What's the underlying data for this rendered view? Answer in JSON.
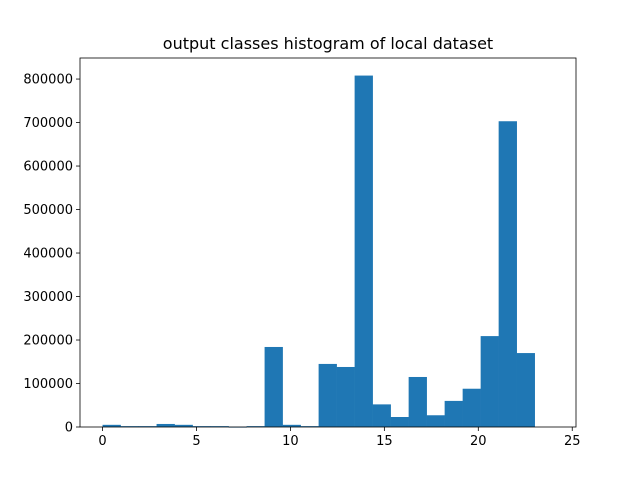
{
  "chart_data": {
    "type": "bar",
    "title": "output classes histogram of local dataset",
    "xlabel": "",
    "ylabel": "",
    "bar_color": "#1f77b4",
    "bin_edges": [
      0,
      0.958,
      1.917,
      2.875,
      3.833,
      4.792,
      5.75,
      6.708,
      7.667,
      8.625,
      9.583,
      10.542,
      11.5,
      12.458,
      13.417,
      14.375,
      15.333,
      16.292,
      17.25,
      18.208,
      19.167,
      20.125,
      21.083,
      22.042,
      23.0,
      23.958
    ],
    "values": [
      5000,
      2000,
      2000,
      7000,
      5000,
      2000,
      2000,
      500,
      2000,
      184000,
      5000,
      2000,
      145000,
      138000,
      808000,
      52000,
      23000,
      115000,
      27000,
      60000,
      88000,
      209000,
      703000,
      170000,
      0
    ],
    "xlim": [
      -1.2,
      25.2
    ],
    "ylim": [
      0,
      848400
    ],
    "xticks": [
      0,
      5,
      10,
      15,
      20,
      25
    ],
    "xtick_labels": [
      "0",
      "5",
      "10",
      "15",
      "20",
      "25"
    ],
    "yticks": [
      0,
      100000,
      200000,
      300000,
      400000,
      500000,
      600000,
      700000,
      800000
    ],
    "ytick_labels": [
      "0",
      "100000",
      "200000",
      "300000",
      "400000",
      "500000",
      "600000",
      "700000",
      "800000"
    ],
    "grid": false,
    "legend": "none"
  }
}
